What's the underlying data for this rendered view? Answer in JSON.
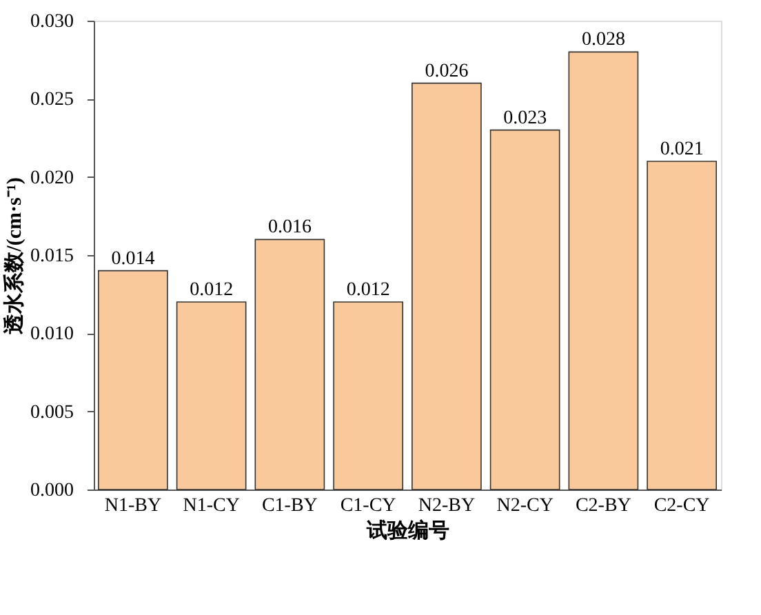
{
  "chart_data": {
    "type": "bar",
    "xlabel": "试验编号",
    "ylabel": "透水系数/(cm·s⁻¹)",
    "categories": [
      "N1-BY",
      "N1-CY",
      "C1-BY",
      "C1-CY",
      "N2-BY",
      "N2-CY",
      "C2-BY",
      "C2-CY"
    ],
    "values": [
      0.014,
      0.012,
      0.016,
      0.012,
      0.026,
      0.023,
      0.028,
      0.021
    ],
    "color": "#f9c89b",
    "data_labels": true,
    "grid": false,
    "ylim": [
      0,
      0.03
    ],
    "yticks": [
      "0.000",
      "0.005",
      "0.010",
      "0.015",
      "0.020",
      "0.025",
      "0.030"
    ]
  }
}
